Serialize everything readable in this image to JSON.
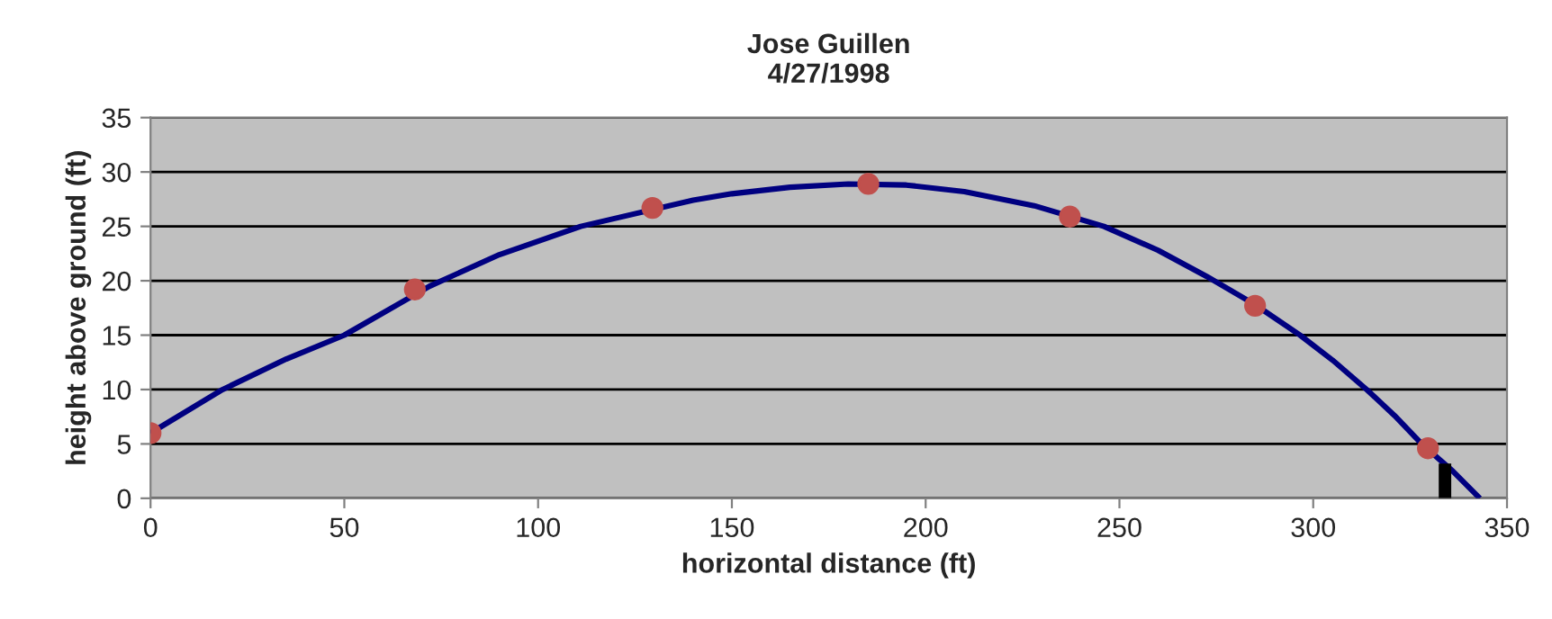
{
  "chart_data": {
    "type": "line",
    "title": "Jose Guillen\n4/27/1998",
    "xlabel": "horizontal distance (ft)",
    "ylabel": "height above ground (ft)",
    "xlim": [
      0,
      350
    ],
    "ylim": [
      0,
      35
    ],
    "xticks": [
      0,
      50,
      100,
      150,
      200,
      250,
      300,
      350
    ],
    "yticks": [
      0,
      5,
      10,
      15,
      20,
      25,
      30,
      35
    ],
    "grid": "y",
    "series": [
      {
        "color": "#000080",
        "x": [
          0,
          18.6,
          35,
          50,
          72,
          90,
          111,
          140,
          150,
          165,
          180,
          195,
          210,
          228,
          246,
          260,
          272.5,
          285,
          296.6,
          305,
          313.8,
          321,
          328,
          336,
          343
        ],
        "values": [
          6,
          10,
          12.8,
          15,
          19.5,
          22.4,
          25,
          27.4,
          28,
          28.6,
          28.9,
          28.8,
          28.2,
          26.9,
          25,
          22.8,
          20.4,
          17.8,
          15,
          12.7,
          10,
          7.6,
          5,
          2.5,
          0
        ]
      },
      {
        "type": "scatter",
        "color": "#c0504d",
        "marker": "circle",
        "x": [
          0,
          68.2,
          129.5,
          185.2,
          237.2,
          285,
          329.6
        ],
        "values": [
          6.0,
          19.2,
          26.7,
          28.9,
          25.9,
          17.7,
          4.6
        ]
      },
      {
        "color": "#000000",
        "x": [
          334,
          334
        ],
        "values": [
          0,
          3.2
        ]
      }
    ]
  }
}
